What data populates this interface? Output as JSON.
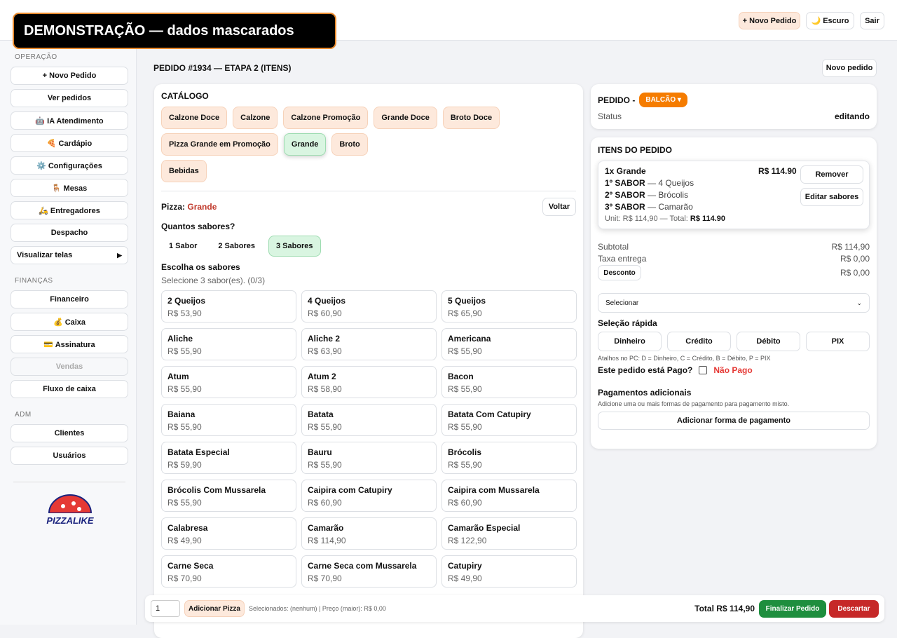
{
  "demo_banner": "DEMONSTRAÇÃO — dados mascarados",
  "header": {
    "buttons": [
      "+ Novo Pedido",
      "🌙 Escuro",
      "Sair"
    ]
  },
  "sidebar": {
    "sections": [
      {
        "title": "OPERAÇÃO",
        "items": [
          {
            "label": "+ Novo Pedido"
          },
          {
            "label": "Ver pedidos"
          },
          {
            "label": "🤖 IA Atendimento"
          },
          {
            "label": "🍕 Cardápio"
          },
          {
            "label": "⚙️ Configurações"
          },
          {
            "label": "🪑 Mesas"
          },
          {
            "label": "🛵 Entregadores"
          },
          {
            "label": "Despacho"
          },
          {
            "label": "Visualizar telas",
            "submenu": true
          }
        ]
      },
      {
        "title": "FINANÇAS",
        "items": [
          {
            "label": "Financeiro"
          },
          {
            "label": "💰 Caixa"
          },
          {
            "label": "💳 Assinatura"
          },
          {
            "label": "Vendas",
            "disabled": true
          },
          {
            "label": "Fluxo de caixa"
          }
        ]
      },
      {
        "title": "ADM",
        "items": [
          {
            "label": "Clientes"
          },
          {
            "label": "Usuários"
          }
        ]
      }
    ],
    "logo": "PIZZALIKE"
  },
  "main": {
    "title": "PEDIDO #1934 — ETAPA 2 (ITENS)",
    "new_order_button": "Novo pedido"
  },
  "catalog": {
    "title": "CATÁLOGO",
    "categories": [
      {
        "label": "Calzone Doce"
      },
      {
        "label": "Calzone"
      },
      {
        "label": "Calzone Promoção"
      },
      {
        "label": "Grande Doce"
      },
      {
        "label": "Broto Doce"
      },
      {
        "label": "Pizza Grande em Promoção"
      },
      {
        "label": "Grande",
        "active": true
      },
      {
        "label": "Broto"
      },
      {
        "label": "Bebidas"
      }
    ],
    "pizza_label": "Pizza:",
    "pizza_name": "Grande",
    "back_button": "Voltar",
    "flavors_question": "Quantos sabores?",
    "flavor_counts": [
      {
        "label": "1 Sabor"
      },
      {
        "label": "2 Sabores"
      },
      {
        "label": "3 Sabores",
        "active": true
      }
    ],
    "choose_title": "Escolha os sabores",
    "choose_hint": "Selecione 3 sabor(es). (0/3)",
    "flavors": [
      {
        "name": "2 Queijos",
        "price": "R$ 53,90"
      },
      {
        "name": "4 Queijos",
        "price": "R$ 60,90"
      },
      {
        "name": "5 Queijos",
        "price": "R$ 65,90"
      },
      {
        "name": "Aliche",
        "price": "R$ 55,90"
      },
      {
        "name": "Aliche 2",
        "price": "R$ 63,90"
      },
      {
        "name": "Americana",
        "price": "R$ 55,90"
      },
      {
        "name": "Atum",
        "price": "R$ 55,90"
      },
      {
        "name": "Atum 2",
        "price": "R$ 58,90"
      },
      {
        "name": "Bacon",
        "price": "R$ 55,90"
      },
      {
        "name": "Baiana",
        "price": "R$ 55,90"
      },
      {
        "name": "Batata",
        "price": "R$ 55,90"
      },
      {
        "name": "Batata Com Catupiry",
        "price": "R$ 55,90"
      },
      {
        "name": "Batata Especial",
        "price": "R$ 59,90"
      },
      {
        "name": "Bauru",
        "price": "R$ 55,90"
      },
      {
        "name": "Brócolis",
        "price": "R$ 55,90"
      },
      {
        "name": "Brócolis Com Mussarela",
        "price": "R$ 55,90"
      },
      {
        "name": "Caipira com Catupiry",
        "price": "R$ 60,90"
      },
      {
        "name": "Caipira com Mussarela",
        "price": "R$ 60,90"
      },
      {
        "name": "Calabresa",
        "price": "R$ 49,90"
      },
      {
        "name": "Camarão",
        "price": "R$ 114,90"
      },
      {
        "name": "Camarão Especial",
        "price": "R$ 122,90"
      },
      {
        "name": "Carne Seca",
        "price": "R$ 70,90"
      },
      {
        "name": "Carne Seca com Mussarela",
        "price": "R$ 70,90"
      },
      {
        "name": "Catupiry",
        "price": "R$ 49,90"
      }
    ]
  },
  "order": {
    "title": "PEDIDO -",
    "channel": "BALCÃO ▾",
    "status_label": "Status",
    "status_value": "editando",
    "items_title": "ITENS DO PEDIDO",
    "item": {
      "title": "1x Grande",
      "price": "R$ 114.90",
      "lines": [
        {
          "label": "1º SABOR",
          "text": "— 4 Queijos"
        },
        {
          "label": "2º SABOR",
          "text": "— Brócolis"
        },
        {
          "label": "3º SABOR",
          "text": "— Camarão"
        }
      ],
      "unit_text": "Unit: R$ 114,90 — Total:",
      "unit_total": "R$ 114.90",
      "remove_button": "Remover",
      "edit_button": "Editar sabores"
    },
    "subtotal_label": "Subtotal",
    "subtotal_value": "R$ 114,90",
    "fee_label": "Taxa entrega",
    "fee_value": "R$ 0,00",
    "discount_button": "Desconto",
    "discount_value": "R$ 0,00",
    "payment_select": "Selecionar",
    "quick_title": "Seleção rápida",
    "quick_buttons": [
      "Dinheiro",
      "Crédito",
      "Débito",
      "PIX"
    ],
    "shortcuts": "Atalhos no PC: D = Dinheiro, C = Crédito, B = Débito, P = PIX",
    "paid_question": "Este pedido está Pago?",
    "paid_status": "Não Pago",
    "extra_title": "Pagamentos adicionais",
    "extra_hint": "Adicione uma ou mais formas de pagamento para pagamento misto.",
    "extra_button": "Adicionar forma de pagamento"
  },
  "footer": {
    "quantity": "1",
    "add_button": "Adicionar Pizza",
    "selection_info": "Selecionados: (nenhum) | Preço (maior): R$ 0,00",
    "total_label": "Total",
    "total_value": "R$ 114,90",
    "finish_button": "Finalizar Pedido",
    "discard_button": "Descartar"
  }
}
